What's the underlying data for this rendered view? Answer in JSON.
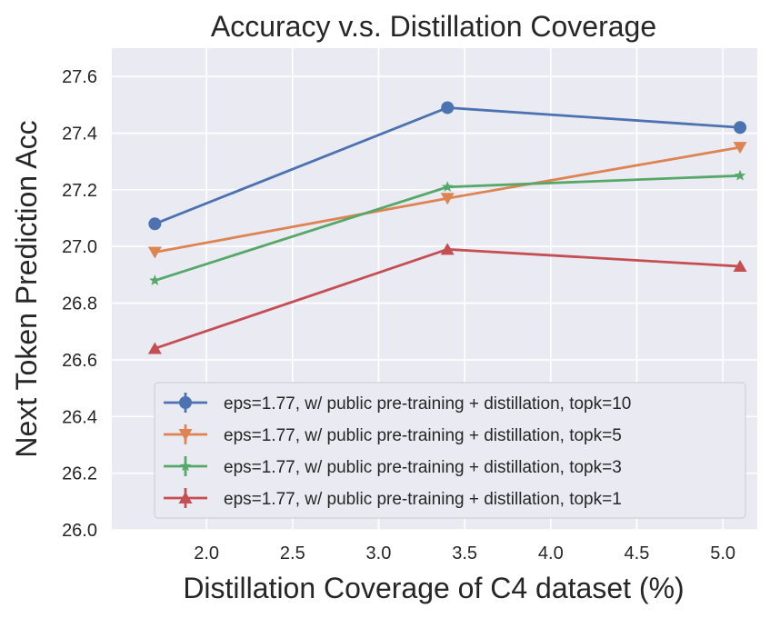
{
  "chart_data": {
    "type": "line",
    "title": "Accuracy v.s. Distillation Coverage",
    "xlabel": "Distillation Coverage of C4 dataset (%)",
    "ylabel": "Next Token Prediction Acc",
    "xlim": [
      1.45,
      5.2
    ],
    "ylim": [
      26.0,
      27.7
    ],
    "x_ticks": [
      "2.0",
      "2.5",
      "3.0",
      "3.5",
      "4.0",
      "4.5",
      "5.0"
    ],
    "y_ticks": [
      "26.0",
      "26.2",
      "26.4",
      "26.6",
      "26.8",
      "27.0",
      "27.2",
      "27.4",
      "27.6"
    ],
    "x": [
      1.7,
      3.4,
      5.1
    ],
    "grid": true,
    "legend_position": "bottom-right",
    "series": [
      {
        "name": "eps=1.77, w/ public pre-training + distillation, topk=10",
        "values": [
          27.08,
          27.49,
          27.42
        ],
        "color": "#4c72b0",
        "marker": "circle"
      },
      {
        "name": "eps=1.77, w/ public pre-training + distillation, topk=5",
        "values": [
          26.98,
          27.17,
          27.35
        ],
        "color": "#dd8452",
        "marker": "triangle-down"
      },
      {
        "name": "eps=1.77, w/ public pre-training + distillation, topk=3",
        "values": [
          26.88,
          27.21,
          27.25
        ],
        "color": "#55a868",
        "marker": "star"
      },
      {
        "name": "eps=1.77, w/ public pre-training + distillation, topk=1",
        "values": [
          26.64,
          26.99,
          26.93
        ],
        "color": "#c44e52",
        "marker": "triangle-up"
      }
    ]
  }
}
